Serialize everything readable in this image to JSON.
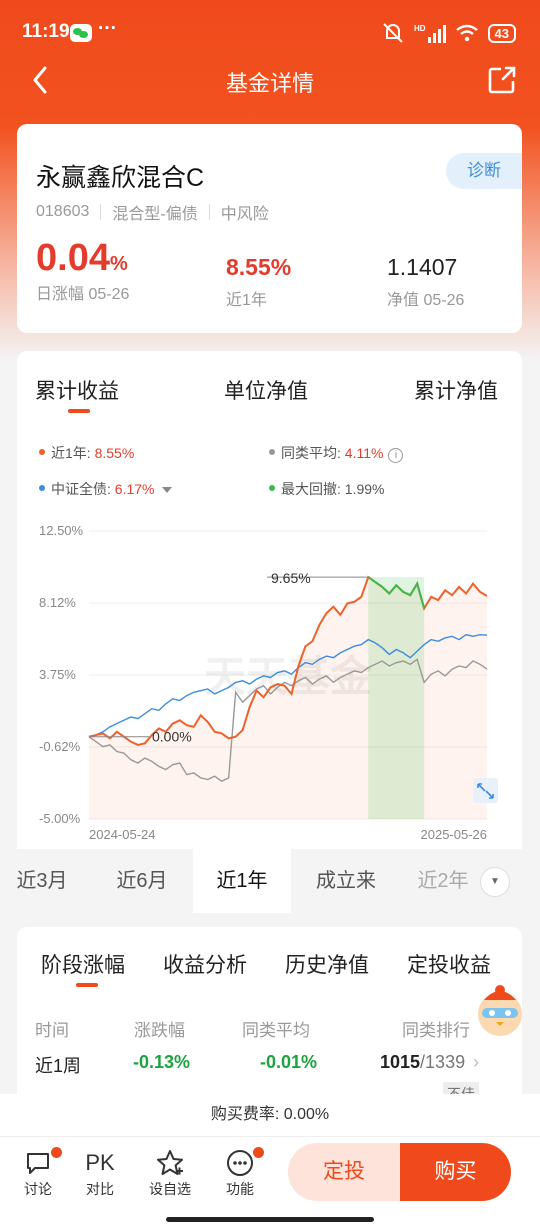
{
  "status": {
    "time": "11:19",
    "dots": "···",
    "hd": "HD",
    "battery": "43"
  },
  "nav": {
    "title": "基金详情"
  },
  "fund": {
    "name": "永赢鑫欣混合C",
    "diagnose": "诊断",
    "code": "018603",
    "category": "混合型-偏债",
    "risk": "中风险",
    "daily_value": "0.04",
    "daily_unit": "%",
    "daily_label": "日涨幅 05-26",
    "year_value": "8.55%",
    "year_label": "近1年",
    "nav_value": "1.1407",
    "nav_label": "净值 05-26"
  },
  "chart_tabs": [
    "累计收益",
    "单位净值",
    "累计净值"
  ],
  "legend": {
    "fund_label": "近1年: ",
    "fund_value": "8.55%",
    "peer_label": "同类平均: ",
    "peer_value": "4.11%",
    "index_label": "中证全债: ",
    "index_value": "6.17%",
    "drawdown_label": "最大回撤: ",
    "drawdown_value": "1.99%"
  },
  "chart_watermark": "天天基金",
  "chart_data": {
    "type": "line",
    "ylim": [
      -5.0,
      12.5
    ],
    "yticks": [
      "12.50%",
      "8.12%",
      "3.75%",
      "-0.62%",
      "-5.00%"
    ],
    "ytick_values": [
      12.5,
      8.12,
      3.75,
      -0.62,
      -5.0
    ],
    "x_start_label": "2024-05-24",
    "x_end_label": "2025-05-26",
    "annotations": {
      "max_label": "9.65%",
      "start_label": "0.00%"
    },
    "series": [
      {
        "name": "近1年",
        "color": "#f0602a",
        "values": [
          0,
          0.1,
          0.2,
          -0.1,
          0.3,
          0.0,
          -0.3,
          -0.5,
          -0.4,
          0.1,
          0.5,
          0.3,
          0.8,
          1.0,
          0.7,
          0.6,
          1.3,
          0.9,
          0.3,
          0.2,
          -0.1,
          0.0,
          0.4,
          1.8,
          2.8,
          2.4,
          3.0,
          3.2,
          3.1,
          2.6,
          4.3,
          5.5,
          5.8,
          6.8,
          7.5,
          7.9,
          7.4,
          8.1,
          8.2,
          8.5,
          9.7,
          9.4,
          9.1,
          8.7,
          9.2,
          8.8,
          8.6,
          9.3,
          7.8,
          8.5,
          8.3,
          8.9,
          8.6,
          9.1,
          8.7,
          9.3,
          8.8,
          8.55
        ]
      },
      {
        "name": "中证全债",
        "color": "#3c8de0",
        "values": [
          0,
          0.1,
          0.3,
          0.6,
          0.8,
          1.0,
          1.2,
          1.1,
          1.4,
          1.7,
          1.6,
          2.0,
          2.3,
          2.2,
          2.5,
          2.7,
          2.8,
          2.9,
          2.6,
          2.8,
          3.0,
          3.3,
          3.4,
          3.2,
          3.5,
          3.7,
          3.6,
          3.9,
          4.0,
          3.8,
          4.2,
          4.5,
          4.4,
          4.7,
          4.9,
          4.8,
          5.1,
          5.3,
          5.5,
          5.6,
          5.9,
          5.7,
          5.4,
          5.0,
          5.3,
          5.1,
          4.8,
          5.2,
          5.6,
          5.9,
          5.8,
          6.0,
          6.1,
          5.9,
          6.2,
          6.1,
          6.2,
          6.17
        ]
      },
      {
        "name": "同类平均",
        "color": "#999999",
        "values": [
          0,
          -0.3,
          -0.6,
          -0.5,
          -0.9,
          -1.0,
          -1.4,
          -1.6,
          -1.3,
          -1.5,
          -1.8,
          -2.0,
          -1.7,
          -1.6,
          -2.3,
          -2.2,
          -2.5,
          -2.6,
          -2.4,
          -2.7,
          -2.5,
          2.7,
          2.1,
          2.5,
          2.9,
          3.1,
          2.6,
          3.0,
          3.3,
          3.1,
          3.4,
          3.6,
          3.2,
          3.5,
          3.7,
          3.3,
          3.6,
          3.8,
          4.0,
          3.9,
          4.2,
          4.4,
          4.6,
          4.3,
          4.5,
          4.6,
          4.4,
          4.7,
          3.3,
          3.8,
          4.0,
          3.7,
          4.1,
          4.3,
          4.2,
          4.6,
          4.4,
          4.11
        ]
      }
    ],
    "drawdown_range": [
      40,
      48
    ]
  },
  "ranges": [
    "近3月",
    "近6月",
    "近1年",
    "成立来",
    "近2年"
  ],
  "range_active": 2,
  "perf_tabs": [
    "阶段涨幅",
    "收益分析",
    "历史净值",
    "定投收益"
  ],
  "perf_headers": [
    "时间",
    "涨跌幅",
    "同类平均",
    "同类排行"
  ],
  "perf_row": {
    "period": "近1周",
    "change": "-0.13%",
    "peer": "-0.01%",
    "rank": "1015",
    "total": "/1339",
    "badge": "不佳"
  },
  "fee": "购买费率: 0.00%",
  "tools": [
    "讨论",
    "对比",
    "设自选",
    "功能"
  ],
  "pk_label": "PK",
  "buttons": {
    "dingtou": "定投",
    "buy": "购买"
  }
}
